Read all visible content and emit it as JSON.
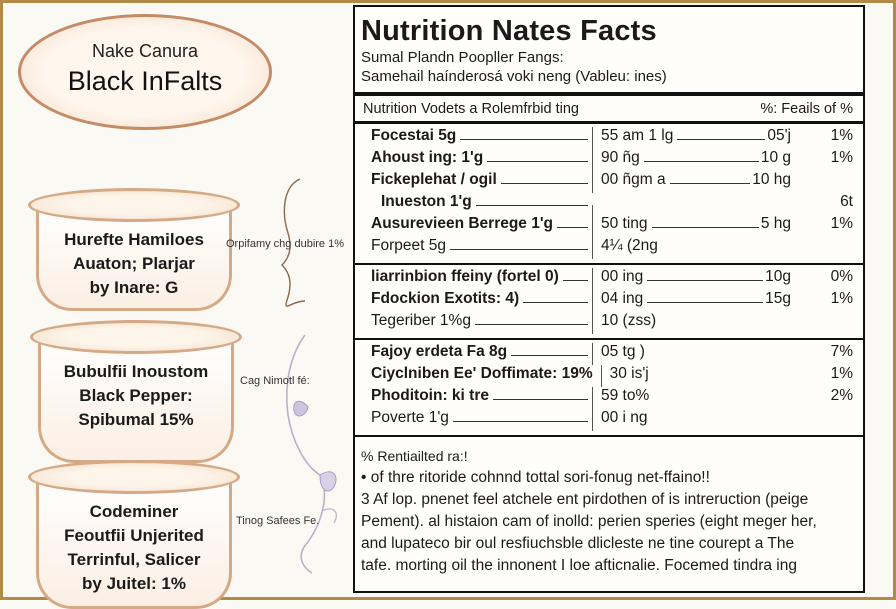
{
  "oval": {
    "line1": "Nake Canura",
    "line2": "Black InFalts"
  },
  "bowls": [
    {
      "lines": [
        "Hurefte Hamiloes",
        "Auaton; Plarjar",
        "by Inare:  G"
      ]
    },
    {
      "lines": [
        "Bubulfii Inoustom",
        "Black Pepper:",
        "Spibumal  15%"
      ]
    },
    {
      "lines": [
        "Codeminer",
        "Feoutfii Unjerited",
        "Terrinful, Salicer",
        "by Juitel:  1%"
      ]
    }
  ],
  "side_labels": [
    "Orpifamy chg dubire 1%",
    "Cag Nimotl fé:",
    "Tinog Safees Fe."
  ],
  "panel": {
    "title": "Nutrition Nates Facts",
    "subtitle1": "Sumal Plandn Poopller Fangs:",
    "subtitle2": "Samehail haínderosá voki neng (Vableu: ines)",
    "header_left": "Nutrition Vodets a Rolemfrbid ting",
    "header_right": "%: Feails of %",
    "groups": [
      [
        {
          "name": "Focestai 5g",
          "amt": "55 am 1 lg",
          "mid": "05'j",
          "pct": "1%",
          "bold": true
        },
        {
          "name": "Ahoust ing: 1'g",
          "amt": "90 ñg",
          "mid": "10 g",
          "pct": "1%",
          "bold": true
        },
        {
          "name": "Fickeplehat / ogil",
          "amt": "00 ñgm a",
          "mid": "10 hg",
          "pct": "",
          "bold": true
        },
        {
          "name": "Inueston 1'g",
          "amt": "",
          "mid": "",
          "pct": "6t",
          "bold": true,
          "indent": true
        },
        {
          "name": "Ausurevieen Berrege 1'g",
          "amt": "50 ting",
          "mid": "5 hg",
          "pct": "1%",
          "bold": true
        },
        {
          "name": "Forpeet 5g",
          "amt": "4¼ (2ng",
          "mid": "",
          "pct": "",
          "bold": false
        }
      ],
      [
        {
          "name": "liarrinbion ffeiny (fortel 0)",
          "amt": "00 ing",
          "mid": "10g",
          "pct": "0%",
          "bold": true
        },
        {
          "name": "Fdockion Exotits: 4)",
          "amt": "04 ing",
          "mid": "15g",
          "pct": "1%",
          "bold": true
        },
        {
          "name": "Tegeriber 1%g",
          "amt": "10 (zss)",
          "mid": "",
          "pct": "",
          "bold": false
        }
      ],
      [
        {
          "name": "Fajoy erdeta Fa 8g",
          "amt": "05 tg )",
          "mid": "",
          "pct": "7%",
          "bold": true
        },
        {
          "name": "Ciyclniben Ee' Doffimate: 19%",
          "amt": "30 is'j",
          "mid": "",
          "pct": "1%",
          "bold": true
        },
        {
          "name": "Phoditoin: ki tre",
          "amt": "59 to%",
          "mid": "",
          "pct": "2%",
          "bold": true
        },
        {
          "name": "Poverte 1'g",
          "amt": "00 i ng",
          "mid": "",
          "pct": "",
          "bold": false
        }
      ]
    ],
    "notes": [
      "% Rentiailted ra:!",
      "• of thre ritoride cohnnd tottal sori-fonug net-ffaino!!",
      "3 Af lop. pnenet feel atchele ent pirdothen of is intreruction (peige",
      "Pement). al histaion cam of inolld: perien speries (eight meger her,",
      "and lupateco bir oul resfiuchsble dlicleste ne tine courept a The",
      "tafe. morting oil the innonent I loe afticnalie. Focemed tindra ing"
    ]
  }
}
